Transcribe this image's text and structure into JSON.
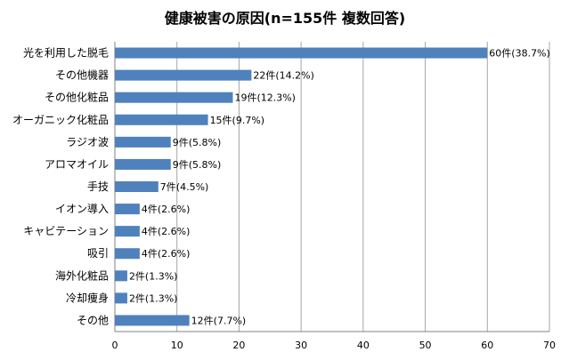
{
  "chart_data": {
    "type": "bar",
    "orientation": "horizontal",
    "title": "健康被害の原因(n=155件  複数回答)",
    "xlabel": "",
    "ylabel": "",
    "xlim": [
      0,
      70
    ],
    "ticks": [
      "0",
      "10",
      "20",
      "30",
      "40",
      "50",
      "60",
      "70"
    ],
    "grid": true,
    "bar_color": "#4f81bd",
    "categories": [
      "光を利用した脱毛",
      "その他機器",
      "その他化粧品",
      "オーガニック化粧品",
      "ラジオ波",
      "アロマオイル",
      "手技",
      "イオン導入",
      "キャビテーション",
      "吸引",
      "海外化粧品",
      "冷却痩身",
      "その他"
    ],
    "values": [
      60,
      22,
      19,
      15,
      9,
      9,
      7,
      4,
      4,
      4,
      2,
      2,
      12
    ],
    "data_labels": [
      "60件(38.7%)",
      "22件(14.2%)",
      "19件(12.3%)",
      "15件(9.7%)",
      "9件(5.8%)",
      "9件(5.8%)",
      "7件(4.5%)",
      "4件(2.6%)",
      "4件(2.6%)",
      "4件(2.6%)",
      "2件(1.3%)",
      "2件(1.3%)",
      "12件(7.7%)"
    ]
  }
}
